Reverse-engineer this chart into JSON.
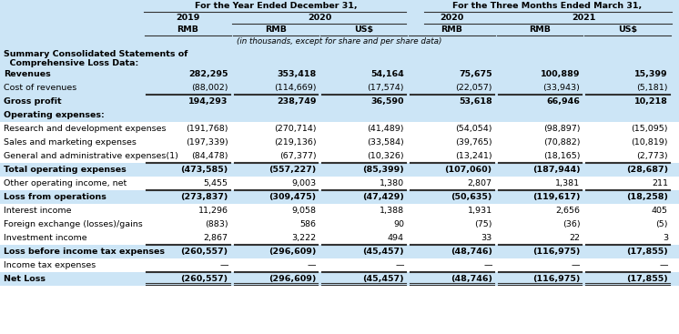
{
  "col_headers_row1_left": "For the Year Ended December 31,",
  "col_headers_row1_right": "For the Three Months Ended March 31,",
  "col_headers_row2": [
    "2019",
    "2020",
    "",
    "2020",
    "2021",
    ""
  ],
  "col_headers_row3": [
    "RMB",
    "RMB",
    "US$",
    "RMB",
    "RMB",
    "US$"
  ],
  "subheader": "(in thousands, except for share and per share data)",
  "rows": [
    {
      "label": "Summary Consolidated Statements of\n  Comprehensive Loss Data:",
      "values": [
        "",
        "",
        "",
        "",
        "",
        ""
      ],
      "bold": true,
      "bg": "light",
      "section_header": true
    },
    {
      "label": "Revenues",
      "values": [
        "282,295",
        "353,418",
        "54,164",
        "75,675",
        "100,889",
        "15,399"
      ],
      "bold": true,
      "bg": "light",
      "border_top": false,
      "border_bottom": false
    },
    {
      "label": "Cost of revenues",
      "values": [
        "(88,002)",
        "(114,669)",
        "(17,574)",
        "(22,057)",
        "(33,943)",
        "(5,181)"
      ],
      "bold": false,
      "bg": "light",
      "border_top": false,
      "border_bottom": true
    },
    {
      "label": "Gross profit",
      "values": [
        "194,293",
        "238,749",
        "36,590",
        "53,618",
        "66,946",
        "10,218"
      ],
      "bold": true,
      "bg": "light",
      "border_top": true,
      "border_bottom": false
    },
    {
      "label": "Operating expenses:",
      "values": [
        "",
        "",
        "",
        "",
        "",
        ""
      ],
      "bold": true,
      "bg": "light",
      "border_top": false,
      "border_bottom": false
    },
    {
      "label": "Research and development expenses",
      "values": [
        "(191,768)",
        "(270,714)",
        "(41,489)",
        "(54,054)",
        "(98,897)",
        "(15,095)"
      ],
      "bold": false,
      "bg": "white",
      "border_top": false,
      "border_bottom": false
    },
    {
      "label": "Sales and marketing expenses",
      "values": [
        "(197,339)",
        "(219,136)",
        "(33,584)",
        "(39,765)",
        "(70,882)",
        "(10,819)"
      ],
      "bold": false,
      "bg": "white",
      "border_top": false,
      "border_bottom": false
    },
    {
      "label": "General and administrative expenses(1)",
      "values": [
        "(84,478)",
        "(67,377)",
        "(10,326)",
        "(13,241)",
        "(18,165)",
        "(2,773)"
      ],
      "bold": false,
      "bg": "white",
      "border_top": false,
      "border_bottom": true
    },
    {
      "label": "Total operating expenses",
      "values": [
        "(473,585)",
        "(557,227)",
        "(85,399)",
        "(107,060)",
        "(187,944)",
        "(28,687)"
      ],
      "bold": true,
      "bg": "light",
      "border_top": true,
      "border_bottom": false
    },
    {
      "label": "Other operating income, net",
      "values": [
        "5,455",
        "9,003",
        "1,380",
        "2,807",
        "1,381",
        "211"
      ],
      "bold": false,
      "bg": "white",
      "border_top": false,
      "border_bottom": true
    },
    {
      "label": "Loss from operations",
      "values": [
        "(273,837)",
        "(309,475)",
        "(47,429)",
        "(50,635)",
        "(119,617)",
        "(18,258)"
      ],
      "bold": true,
      "bg": "light",
      "border_top": true,
      "border_bottom": false
    },
    {
      "label": "Interest income",
      "values": [
        "11,296",
        "9,058",
        "1,388",
        "1,931",
        "2,656",
        "405"
      ],
      "bold": false,
      "bg": "white",
      "border_top": false,
      "border_bottom": false
    },
    {
      "label": "Foreign exchange (losses)/gains",
      "values": [
        "(883)",
        "586",
        "90",
        "(75)",
        "(36)",
        "(5)"
      ],
      "bold": false,
      "bg": "white",
      "border_top": false,
      "border_bottom": false
    },
    {
      "label": "Investment income",
      "values": [
        "2,867",
        "3,222",
        "494",
        "33",
        "22",
        "3"
      ],
      "bold": false,
      "bg": "white",
      "border_top": false,
      "border_bottom": true
    },
    {
      "label": "Loss before income tax expenses",
      "values": [
        "(260,557)",
        "(296,609)",
        "(45,457)",
        "(48,746)",
        "(116,975)",
        "(17,855)"
      ],
      "bold": true,
      "bg": "light",
      "border_top": true,
      "border_bottom": false
    },
    {
      "label": "Income tax expenses",
      "values": [
        "—",
        "—",
        "—",
        "—",
        "—",
        "—"
      ],
      "bold": false,
      "bg": "white",
      "border_top": false,
      "border_bottom": true
    },
    {
      "label": "Net Loss",
      "values": [
        "(260,557)",
        "(296,609)",
        "(45,457)",
        "(48,746)",
        "(116,975)",
        "(17,855)"
      ],
      "bold": true,
      "bg": "light",
      "border_top": true,
      "border_bottom": true,
      "double_bottom": true
    }
  ],
  "light_bg": "#cce5f6",
  "white_bg": "#ffffff",
  "fig_w": 7.46,
  "fig_h": 3.67,
  "dpi": 100
}
